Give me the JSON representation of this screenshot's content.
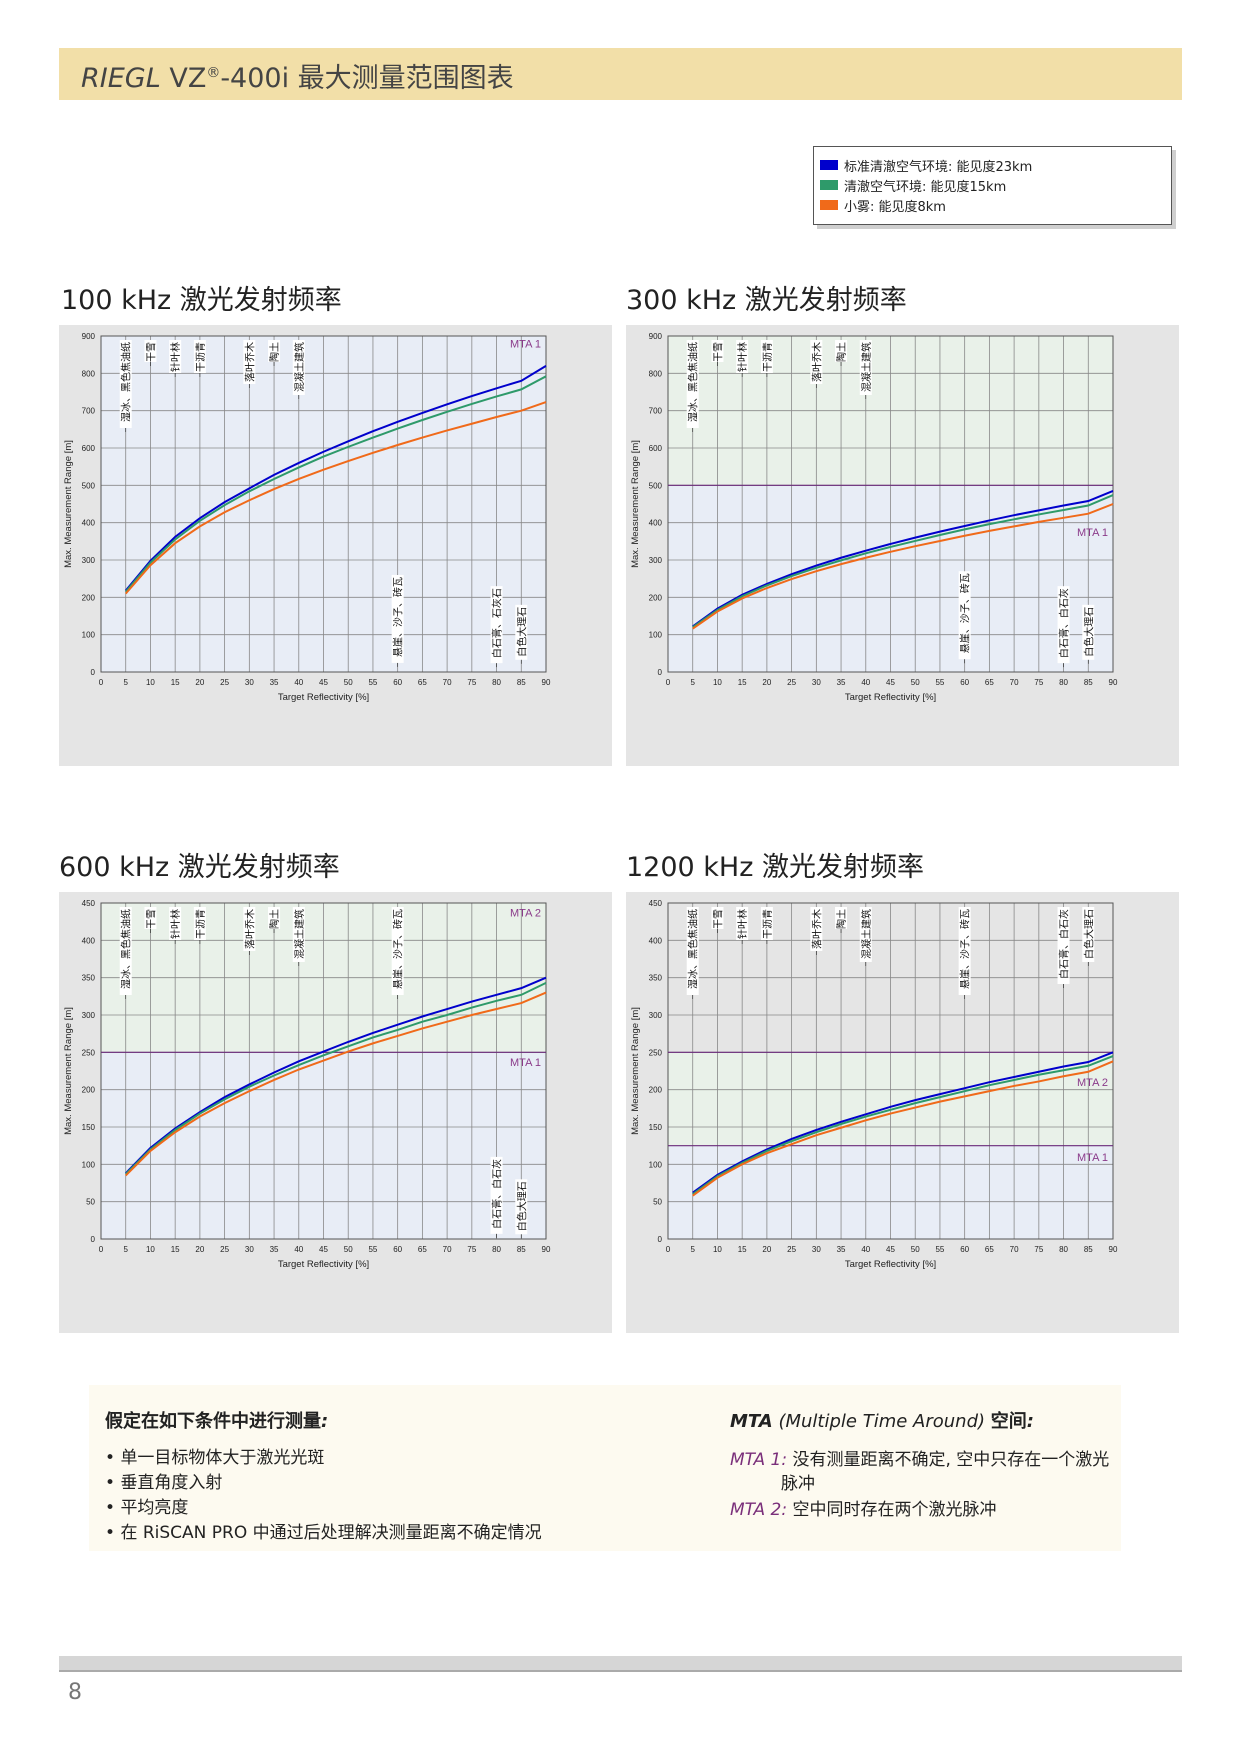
{
  "header": {
    "brand": "RIEGL",
    "model": "VZ",
    "reg": "®",
    "rest": "-400i 最大测量范围图表"
  },
  "legend": [
    {
      "label": "标准清澈空气环境: 能见度23km",
      "color": "#0000cc"
    },
    {
      "label": "清澈空气环境: 能见度15km",
      "color": "#2e9a6a"
    },
    {
      "label": "小雾: 能见度8km",
      "color": "#f06a1a"
    }
  ],
  "chart_data": [
    {
      "id": "c100",
      "type": "line",
      "title": "100 kHz 激光发射频率",
      "xlabel": "Target Reflectivity [%]",
      "ylabel": "Max. Measurement Range [m]",
      "xlim": [
        0,
        90
      ],
      "ylim": [
        0,
        900
      ],
      "xticks": [
        0,
        5,
        10,
        15,
        20,
        25,
        30,
        35,
        40,
        45,
        50,
        55,
        60,
        65,
        70,
        75,
        80,
        85,
        90
      ],
      "yticks": [
        0,
        100,
        200,
        300,
        400,
        500,
        600,
        700,
        800,
        900
      ],
      "grid": true,
      "x": [
        5,
        10,
        15,
        20,
        25,
        30,
        35,
        40,
        45,
        50,
        55,
        60,
        65,
        70,
        75,
        80,
        85,
        90
      ],
      "series": [
        {
          "name": "标准清澈空气环境: 能见度23km",
          "color": "#0000cc",
          "values": [
            218,
            298,
            362,
            412,
            455,
            492,
            528,
            560,
            590,
            618,
            645,
            670,
            694,
            717,
            739,
            760,
            780,
            820
          ]
        },
        {
          "name": "清澈空气环境: 能见度15km",
          "color": "#2e9a6a",
          "values": [
            215,
            293,
            355,
            405,
            447,
            484,
            517,
            548,
            577,
            603,
            628,
            652,
            675,
            697,
            718,
            738,
            757,
            792
          ]
        },
        {
          "name": "小雾: 能见度8km",
          "color": "#f06a1a",
          "values": [
            210,
            286,
            345,
            390,
            428,
            460,
            490,
            517,
            542,
            565,
            587,
            608,
            628,
            647,
            665,
            683,
            700,
            723
          ]
        }
      ],
      "mta_bands": [
        {
          "from": 0,
          "to": 900,
          "color": "#e8edf6"
        }
      ],
      "mta_lines": [],
      "mta_labels": [
        {
          "text": "MTA 1",
          "y": 880
        }
      ],
      "materials": [
        {
          "x": 5,
          "text": "湿冰、黑色焦油纸",
          "pos": "top",
          "y": 660
        },
        {
          "x": 10,
          "text": "干雪",
          "pos": "top",
          "y": 820
        },
        {
          "x": 15,
          "text": "针叶林",
          "pos": "top",
          "y": 800
        },
        {
          "x": 20,
          "text": "干沥青",
          "pos": "top",
          "y": 800
        },
        {
          "x": 30,
          "text": "落叶乔木",
          "pos": "top",
          "y": 780
        },
        {
          "x": 35,
          "text": "陶土",
          "pos": "top",
          "y": 780
        },
        {
          "x": 40,
          "text": "混凝土建筑",
          "pos": "top",
          "y": 740
        },
        {
          "x": 60,
          "text": "悬崖、沙子、砖瓦",
          "pos": "bottom",
          "y": 260
        },
        {
          "x": 80,
          "text": "白石膏、石灰石",
          "pos": "bottom",
          "y": 230
        },
        {
          "x": 85,
          "text": "白色大理石",
          "pos": "bottom",
          "y": 180
        }
      ]
    },
    {
      "id": "c300",
      "type": "line",
      "title": "300 kHz 激光发射频率",
      "xlabel": "Target Reflectivity [%]",
      "ylabel": "Max. Measurement Range [m]",
      "xlim": [
        0,
        90
      ],
      "ylim": [
        0,
        900
      ],
      "xticks": [
        0,
        5,
        10,
        15,
        20,
        25,
        30,
        35,
        40,
        45,
        50,
        55,
        60,
        65,
        70,
        75,
        80,
        85,
        90
      ],
      "yticks": [
        0,
        100,
        200,
        300,
        400,
        500,
        600,
        700,
        800,
        900
      ],
      "grid": true,
      "x": [
        5,
        10,
        15,
        20,
        25,
        30,
        35,
        40,
        45,
        50,
        55,
        60,
        65,
        70,
        75,
        80,
        85,
        90
      ],
      "series": [
        {
          "name": "标准清澈空气环境: 能见度23km",
          "color": "#0000cc",
          "values": [
            122,
            170,
            207,
            236,
            262,
            285,
            306,
            325,
            343,
            360,
            376,
            391,
            406,
            420,
            433,
            446,
            458,
            485
          ]
        },
        {
          "name": "清澈空气环境: 能见度15km",
          "color": "#2e9a6a",
          "values": [
            120,
            166,
            203,
            232,
            257,
            279,
            299,
            318,
            335,
            351,
            367,
            382,
            396,
            409,
            422,
            434,
            446,
            474
          ]
        },
        {
          "name": "小雾: 能见度8km",
          "color": "#f06a1a",
          "values": [
            116,
            162,
            197,
            225,
            249,
            270,
            289,
            306,
            322,
            337,
            351,
            365,
            378,
            390,
            402,
            413,
            424,
            450
          ]
        }
      ],
      "mta_bands": [
        {
          "from": 0,
          "to": 500,
          "color": "#e8edf6"
        },
        {
          "from": 500,
          "to": 900,
          "color": "#e9f1e9"
        }
      ],
      "mta_lines": [
        500
      ],
      "mta_labels": [
        {
          "text": "MTA 1",
          "y": 375
        }
      ],
      "materials": [
        {
          "x": 5,
          "text": "湿冰、黑色焦油纸",
          "pos": "top",
          "y": 660
        },
        {
          "x": 10,
          "text": "干雪",
          "pos": "top",
          "y": 820
        },
        {
          "x": 15,
          "text": "针叶林",
          "pos": "top",
          "y": 800
        },
        {
          "x": 20,
          "text": "干沥青",
          "pos": "top",
          "y": 800
        },
        {
          "x": 30,
          "text": "落叶乔木",
          "pos": "top",
          "y": 780
        },
        {
          "x": 35,
          "text": "陶土",
          "pos": "top",
          "y": 780
        },
        {
          "x": 40,
          "text": "混凝土建筑",
          "pos": "top",
          "y": 740
        },
        {
          "x": 60,
          "text": "悬崖、沙子、砖瓦",
          "pos": "bottom",
          "y": 270
        },
        {
          "x": 80,
          "text": "白石膏、白石灰",
          "pos": "bottom",
          "y": 230
        },
        {
          "x": 85,
          "text": "白色大理石",
          "pos": "bottom",
          "y": 180
        }
      ]
    },
    {
      "id": "c600",
      "type": "line",
      "title": "600 kHz 激光发射频率",
      "xlabel": "Target Reflectivity [%]",
      "ylabel": "Max. Measurement Range [m]",
      "xlim": [
        0,
        90
      ],
      "ylim": [
        0,
        450
      ],
      "xticks": [
        0,
        5,
        10,
        15,
        20,
        25,
        30,
        35,
        40,
        45,
        50,
        55,
        60,
        65,
        70,
        75,
        80,
        85,
        90
      ],
      "yticks": [
        0,
        50,
        100,
        150,
        200,
        250,
        300,
        350,
        400,
        450
      ],
      "grid": true,
      "x": [
        5,
        10,
        15,
        20,
        25,
        30,
        35,
        40,
        45,
        50,
        55,
        60,
        65,
        70,
        75,
        80,
        85,
        90
      ],
      "series": [
        {
          "name": "标准清澈空气环境: 能见度23km",
          "color": "#0000cc",
          "values": [
            88,
            122,
            148,
            170,
            190,
            207,
            223,
            238,
            251,
            264,
            276,
            287,
            298,
            308,
            318,
            327,
            336,
            350
          ]
        },
        {
          "name": "清澈空气环境: 能见度15km",
          "color": "#2e9a6a",
          "values": [
            87,
            120,
            146,
            168,
            187,
            204,
            219,
            233,
            246,
            258,
            270,
            280,
            291,
            300,
            310,
            319,
            327,
            343
          ]
        },
        {
          "name": "小雾: 能见度8km",
          "color": "#f06a1a",
          "values": [
            85,
            118,
            143,
            164,
            182,
            198,
            213,
            227,
            239,
            251,
            262,
            272,
            282,
            291,
            300,
            308,
            316,
            330
          ]
        }
      ],
      "mta_bands": [
        {
          "from": 0,
          "to": 250,
          "color": "#e8edf6"
        },
        {
          "from": 250,
          "to": 450,
          "color": "#e9f1e9"
        }
      ],
      "mta_lines": [
        250
      ],
      "mta_labels": [
        {
          "text": "MTA 2",
          "y": 437
        },
        {
          "text": "MTA 1",
          "y": 237
        }
      ],
      "materials": [
        {
          "x": 5,
          "text": "湿冰、黑色焦油纸",
          "pos": "top",
          "y": 330
        },
        {
          "x": 10,
          "text": "干雪",
          "pos": "top",
          "y": 410
        },
        {
          "x": 15,
          "text": "针叶林",
          "pos": "top",
          "y": 400
        },
        {
          "x": 20,
          "text": "干沥青",
          "pos": "top",
          "y": 400
        },
        {
          "x": 30,
          "text": "落叶乔木",
          "pos": "top",
          "y": 390
        },
        {
          "x": 35,
          "text": "陶土",
          "pos": "top",
          "y": 390
        },
        {
          "x": 40,
          "text": "混凝土建筑",
          "pos": "top",
          "y": 370
        },
        {
          "x": 60,
          "text": "悬崖、沙子、砖瓦",
          "pos": "top",
          "y": 330
        },
        {
          "x": 80,
          "text": "白石膏、白石灰",
          "pos": "bottom",
          "y": 110
        },
        {
          "x": 85,
          "text": "白色大理石",
          "pos": "bottom",
          "y": 80
        }
      ]
    },
    {
      "id": "c1200",
      "type": "line",
      "title": "1200 kHz 激光发射频率",
      "xlabel": "Target Reflectivity [%]",
      "ylabel": "Max. Measurement Range [m]",
      "xlim": [
        0,
        90
      ],
      "ylim": [
        0,
        450
      ],
      "xticks": [
        0,
        5,
        10,
        15,
        20,
        25,
        30,
        35,
        40,
        45,
        50,
        55,
        60,
        65,
        70,
        75,
        80,
        85,
        90
      ],
      "yticks": [
        0,
        50,
        100,
        150,
        200,
        250,
        300,
        350,
        400,
        450
      ],
      "grid": true,
      "x": [
        5,
        10,
        15,
        20,
        25,
        30,
        35,
        40,
        45,
        50,
        55,
        60,
        65,
        70,
        75,
        80,
        85,
        90
      ],
      "series": [
        {
          "name": "标准清澈空气环境: 能见度23km",
          "color": "#0000cc",
          "values": [
            62,
            86,
            104,
            120,
            134,
            146,
            157,
            167,
            177,
            186,
            194,
            202,
            210,
            217,
            224,
            231,
            237,
            250
          ]
        },
        {
          "name": "清澈空气环境: 能见度15km",
          "color": "#2e9a6a",
          "values": [
            60,
            84,
            102,
            118,
            131,
            143,
            154,
            164,
            173,
            182,
            190,
            198,
            206,
            213,
            220,
            226,
            232,
            245
          ]
        },
        {
          "name": "小雾: 能见度8km",
          "color": "#f06a1a",
          "values": [
            58,
            82,
            100,
            115,
            127,
            139,
            149,
            159,
            168,
            176,
            184,
            191,
            198,
            205,
            211,
            218,
            224,
            238
          ]
        }
      ],
      "mta_bands": [
        {
          "from": 0,
          "to": 125,
          "color": "#e8edf6"
        },
        {
          "from": 125,
          "to": 250,
          "color": "#e9f1e9"
        }
      ],
      "mta_lines": [
        125,
        250
      ],
      "mta_labels": [
        {
          "text": "MTA 2",
          "y": 210
        },
        {
          "text": "MTA 1",
          "y": 110
        }
      ],
      "materials": [
        {
          "x": 5,
          "text": "湿冰、黑色焦油纸",
          "pos": "top",
          "y": 330
        },
        {
          "x": 10,
          "text": "干雪",
          "pos": "top",
          "y": 410
        },
        {
          "x": 15,
          "text": "针叶林",
          "pos": "top",
          "y": 400
        },
        {
          "x": 20,
          "text": "干沥青",
          "pos": "top",
          "y": 400
        },
        {
          "x": 30,
          "text": "落叶乔木",
          "pos": "top",
          "y": 390
        },
        {
          "x": 35,
          "text": "陶土",
          "pos": "top",
          "y": 390
        },
        {
          "x": 40,
          "text": "混凝土建筑",
          "pos": "top",
          "y": 370
        },
        {
          "x": 60,
          "text": "悬崖、沙子、砖瓦",
          "pos": "top",
          "y": 320
        },
        {
          "x": 80,
          "text": "白石膏、白石灰",
          "pos": "top",
          "y": 350
        },
        {
          "x": 85,
          "text": "白色大理石",
          "pos": "top",
          "y": 360
        }
      ]
    }
  ],
  "notes": {
    "left_heading": "假定在如下条件中进行测量",
    "left_colon": ":",
    "bullets": [
      "单一目标物体大于激光光斑",
      "垂直角度入射",
      "平均亮度",
      "在 RiSCAN PRO 中通过后处理解决测量距离不确定情况"
    ],
    "right_heading_mta": "MTA",
    "right_heading_paren": " (Multiple Time Around) ",
    "right_heading_tail": "空间",
    "right_heading_colon": ":",
    "mta1_tag": "MTA 1:",
    "mta1_text": "没有测量距离不确定, 空中只存在一个激光",
    "mta1_text2": "脉冲",
    "mta2_tag": "MTA 2:",
    "mta2_text": "空中同时存在两个激光脉冲"
  },
  "footer": {
    "page": "8"
  }
}
